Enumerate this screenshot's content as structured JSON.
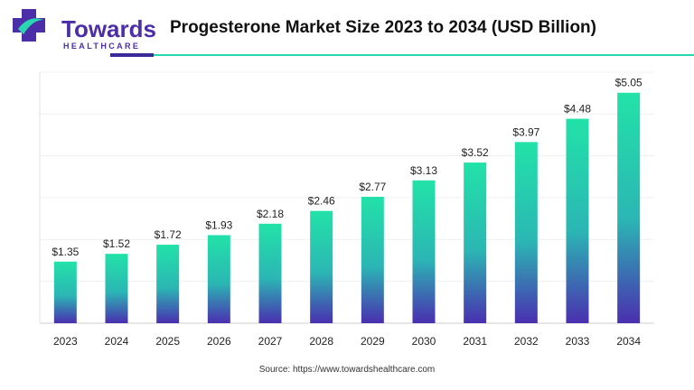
{
  "brand": {
    "name": "Towards",
    "subname": "HEALTHCARE",
    "colors": {
      "primary": "#4b2ea8",
      "accent": "#2ad6b0",
      "bar_top": "#22e2a8",
      "bar_bottom": "#4a2fb0"
    }
  },
  "source": "Source: https://www.towardshealthcare.com",
  "chart_data": {
    "type": "bar",
    "title": "Progesterone Market Size 2023 to 2034 (USD Billion)",
    "categories": [
      "2023",
      "2024",
      "2025",
      "2026",
      "2027",
      "2028",
      "2029",
      "2030",
      "2031",
      "2032",
      "2033",
      "2034"
    ],
    "values": [
      1.35,
      1.52,
      1.72,
      1.93,
      2.18,
      2.46,
      2.77,
      3.13,
      3.52,
      3.97,
      4.48,
      5.05
    ],
    "data_labels": [
      "$1.35",
      "$1.52",
      "$1.72",
      "$1.93",
      "$2.18",
      "$2.46",
      "$2.77",
      "$3.13",
      "$3.52",
      "$3.97",
      "$4.48",
      "$5.05"
    ],
    "xlabel": "",
    "ylabel": "",
    "ylim": [
      0,
      5.5
    ],
    "grid": true,
    "legend": "none"
  }
}
